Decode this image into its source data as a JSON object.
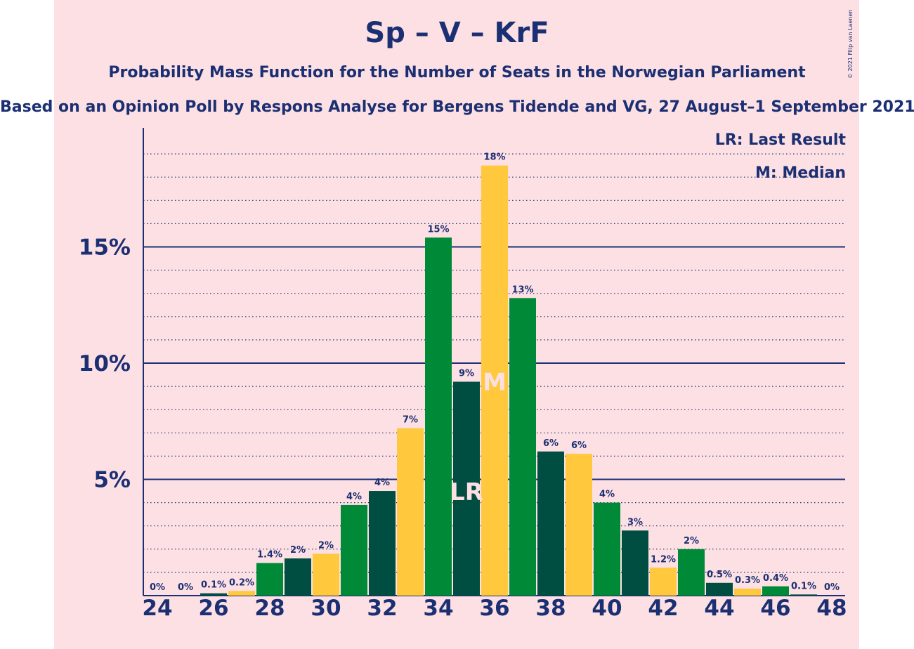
{
  "chart_data": {
    "type": "bar",
    "title": "Sp – V – KrF",
    "subtitle": "Probability Mass Function for the Number of Seats in the Norwegian Parliament",
    "caption": "Based on an Opinion Poll by Respons Analyse for Bergens Tidende and VG, 27 August–1 September 2021",
    "copyright": "© 2021 Filip van Laenen",
    "legend": {
      "last_result": "LR: Last Result",
      "median": "M: Median",
      "position": "top-right"
    },
    "x": [
      24,
      25,
      26,
      27,
      28,
      29,
      30,
      31,
      32,
      33,
      34,
      35,
      36,
      37,
      38,
      39,
      40,
      41,
      42,
      43,
      44,
      45,
      46,
      47,
      48
    ],
    "x_tick_labels": [
      "24",
      "26",
      "28",
      "30",
      "32",
      "34",
      "36",
      "38",
      "40",
      "42",
      "44",
      "46",
      "48"
    ],
    "values": [
      0.0,
      0.0,
      0.1,
      0.2,
      1.4,
      1.6,
      1.8,
      3.9,
      4.5,
      7.2,
      15.4,
      9.2,
      18.5,
      12.8,
      6.2,
      6.1,
      4.0,
      2.8,
      1.2,
      2.0,
      0.55,
      0.3,
      0.4,
      0.05,
      0.0
    ],
    "data_labels": [
      "0%",
      "0%",
      "0.1%",
      "0.2%",
      "1.4%",
      "2%",
      "2%",
      "4%",
      "4%",
      "7%",
      "15%",
      "9%",
      "18%",
      "13%",
      "6%",
      "6%",
      "4%",
      "3%",
      "1.2%",
      "2%",
      "0.5%",
      "0.3%",
      "0.4%",
      "0.1%",
      "0%"
    ],
    "y_tick_labels": [
      "5%",
      "10%",
      "15%"
    ],
    "y_ticks": [
      5,
      10,
      15
    ],
    "ylim": [
      0,
      20
    ],
    "minor_grid_step": 1,
    "last_result_seat": 35,
    "last_result_label": "LR",
    "median_seat": 36,
    "median_label": "M",
    "colors": {
      "background": "#fde0e3",
      "text": "#1b2f73",
      "palette": [
        "#ffc83d",
        "#008a37",
        "#004e42"
      ],
      "marker": "#fde0e3"
    }
  }
}
